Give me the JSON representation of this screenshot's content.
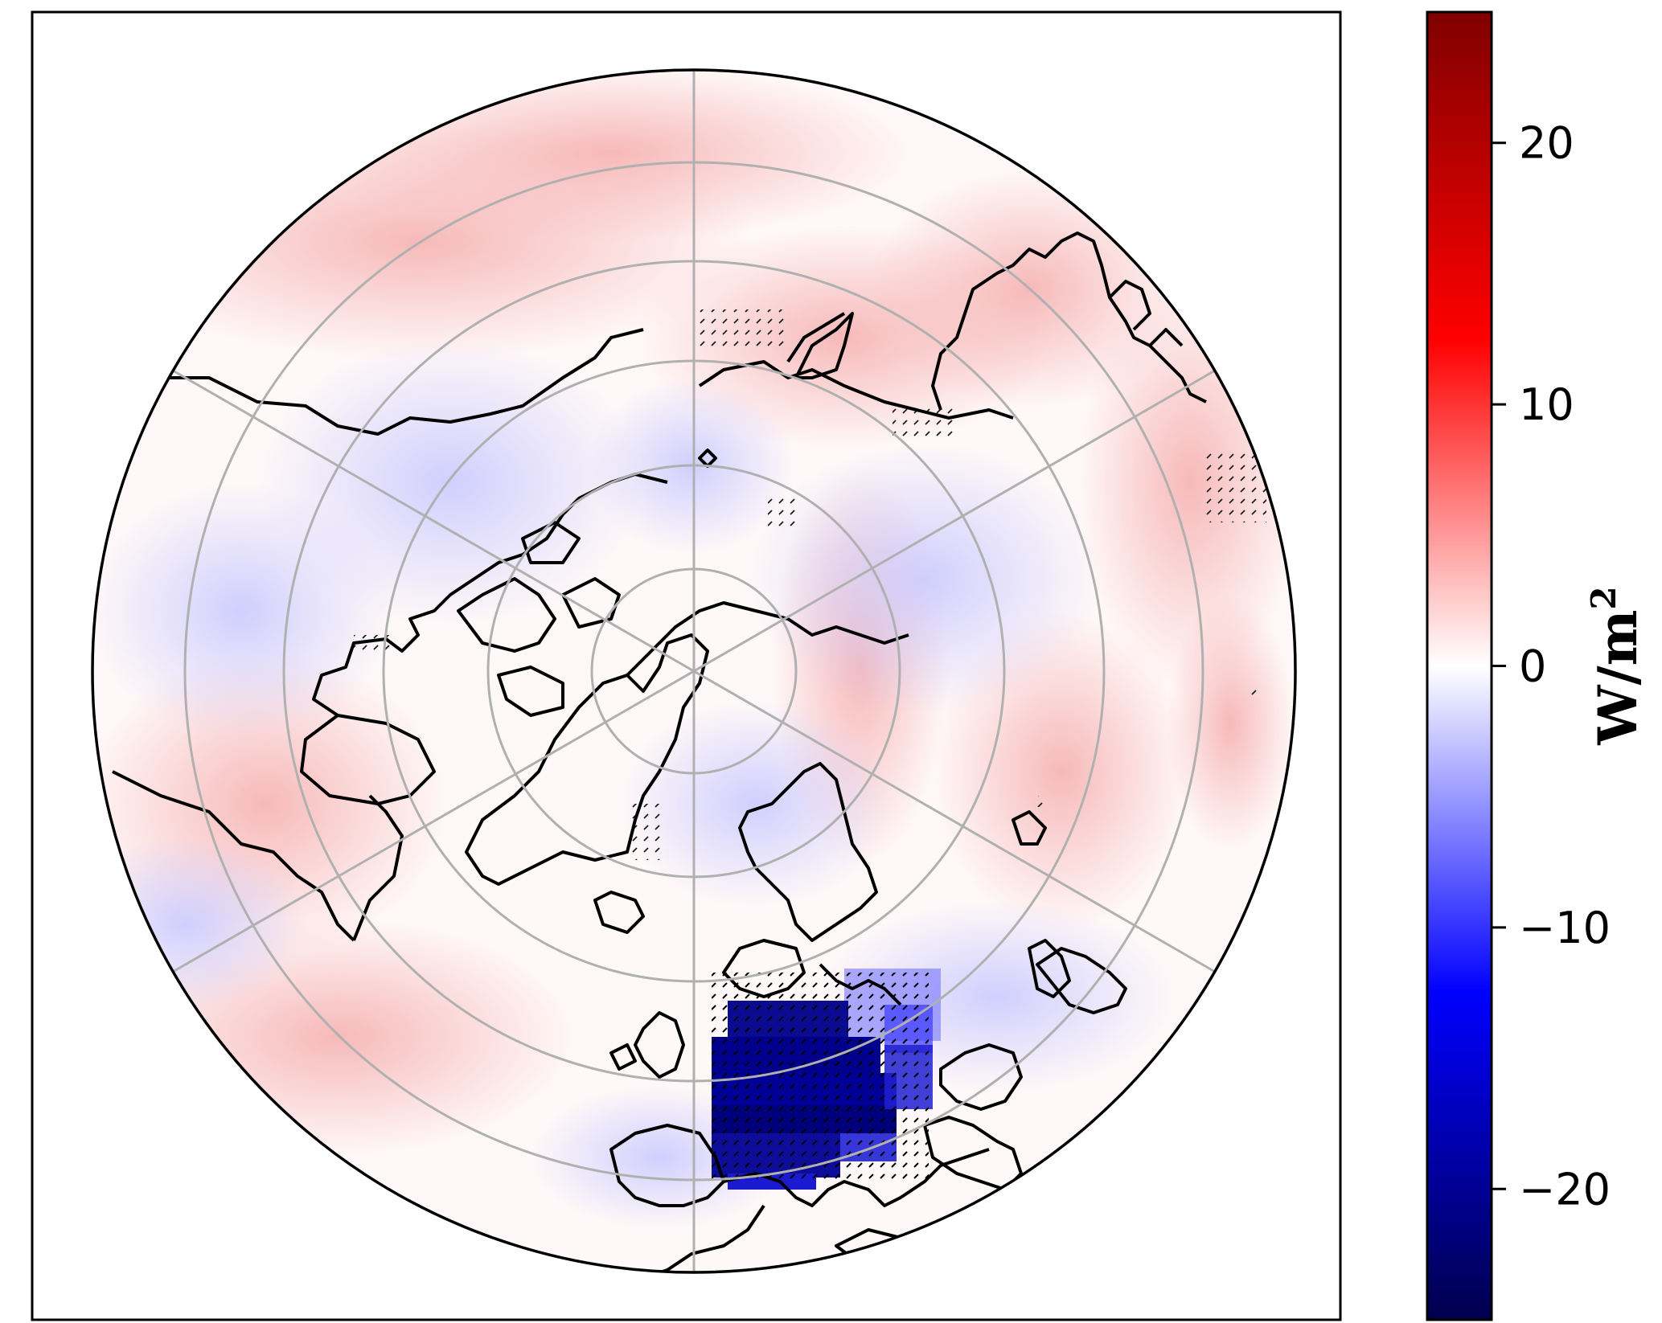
{
  "map": {
    "projection": "north-polar-stereographic",
    "background_color": "#fffafa",
    "gridline_color": "#b0b0b0",
    "coastline_color": "#000000",
    "field": "anomaly-shading",
    "features": [
      {
        "name": "strong negative anomaly over western/central Europe",
        "value": -22
      },
      {
        "name": "weak positive anomaly over North Pacific / Bering region",
        "value": 4
      },
      {
        "name": "weak positive anomaly over NE Siberia",
        "value": 3
      },
      {
        "name": "weak negative anomaly over Canadian Arctic",
        "value": -2
      }
    ],
    "stippling": "hatched where statistically significant"
  },
  "colorbar": {
    "label_base": "W/m",
    "label_exponent": "2",
    "ticks": [
      {
        "value": 20,
        "text": "20"
      },
      {
        "value": 10,
        "text": "10"
      },
      {
        "value": 0,
        "text": "0"
      },
      {
        "value": -10,
        "text": "−10"
      },
      {
        "value": -20,
        "text": "−20"
      }
    ],
    "range": [
      -25,
      25
    ],
    "colormap": "seismic",
    "colors": [
      "#00004c",
      "#0000ff",
      "#ffffff",
      "#ff0000",
      "#800000"
    ]
  }
}
